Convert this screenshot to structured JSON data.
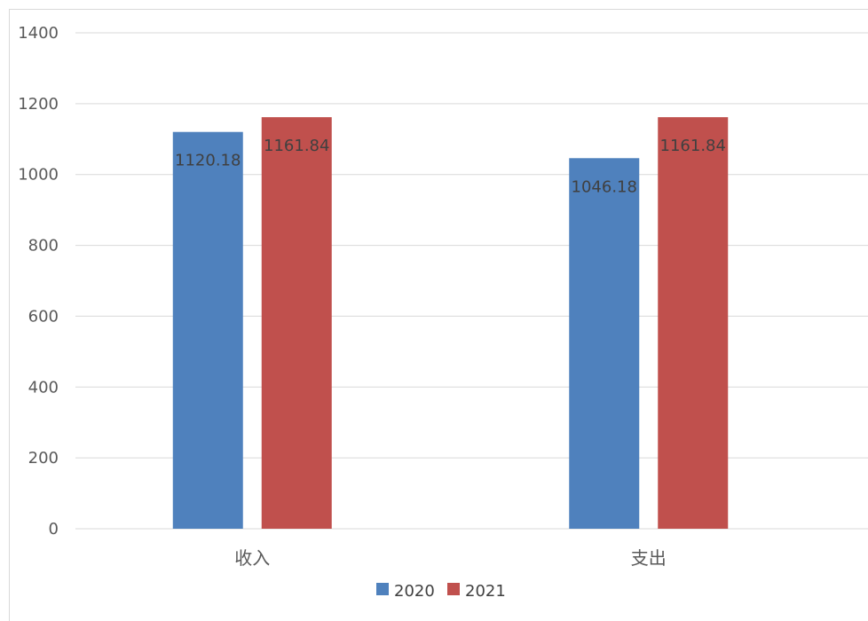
{
  "chart_data": {
    "type": "bar",
    "categories": [
      "收入",
      "支出"
    ],
    "series": [
      {
        "name": "2020",
        "values": [
          1120.18,
          1046.18
        ],
        "color": "#4f81bd"
      },
      {
        "name": "2021",
        "values": [
          1161.84,
          1161.84
        ],
        "color": "#c0504d"
      }
    ],
    "data_labels": [
      [
        "1120.18",
        "1046.18"
      ],
      [
        "1161.84",
        "1161.84"
      ]
    ],
    "ylim": [
      0,
      1400
    ],
    "y_ticks": [
      0,
      200,
      400,
      600,
      800,
      1000,
      1200,
      1400
    ],
    "y_tick_labels": [
      "0",
      "200",
      "400",
      "600",
      "800",
      "1000",
      "1200",
      "1400"
    ],
    "grid": true,
    "legend_position": "bottom",
    "title": "",
    "xlabel": "",
    "ylabel": ""
  }
}
